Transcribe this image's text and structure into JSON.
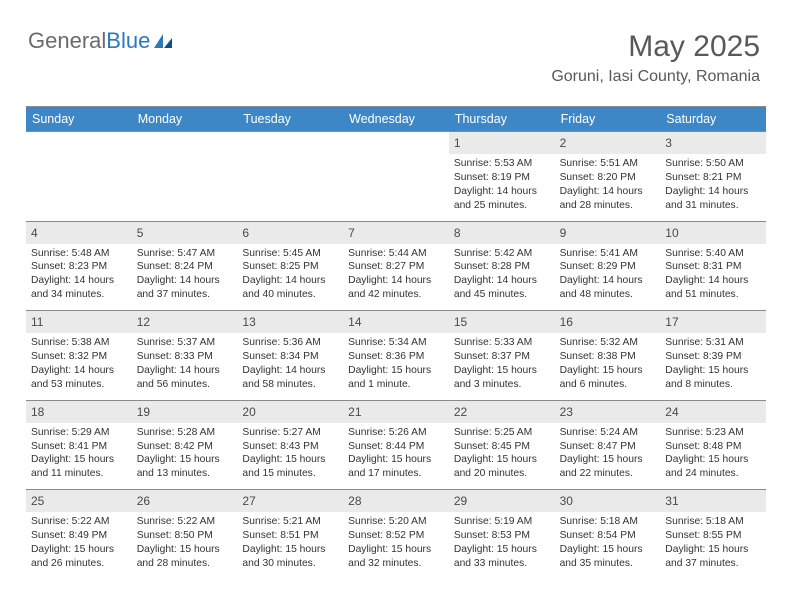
{
  "logo": {
    "text_gray": "General",
    "text_blue": "Blue"
  },
  "header": {
    "title": "May 2025",
    "subtitle": "Goruni, Iasi County, Romania"
  },
  "colors": {
    "header_bar": "#3d87c7",
    "daynum_bg": "#eaeaea",
    "rule": "#8a8a8a",
    "title_color": "#595959",
    "body_text": "#333333"
  },
  "day_names": [
    "Sunday",
    "Monday",
    "Tuesday",
    "Wednesday",
    "Thursday",
    "Friday",
    "Saturday"
  ],
  "weeks": [
    [
      {
        "n": "",
        "l": [
          "",
          "",
          "",
          ""
        ]
      },
      {
        "n": "",
        "l": [
          "",
          "",
          "",
          ""
        ]
      },
      {
        "n": "",
        "l": [
          "",
          "",
          "",
          ""
        ]
      },
      {
        "n": "",
        "l": [
          "",
          "",
          "",
          ""
        ]
      },
      {
        "n": "1",
        "l": [
          "Sunrise: 5:53 AM",
          "Sunset: 8:19 PM",
          "Daylight: 14 hours",
          "and 25 minutes."
        ]
      },
      {
        "n": "2",
        "l": [
          "Sunrise: 5:51 AM",
          "Sunset: 8:20 PM",
          "Daylight: 14 hours",
          "and 28 minutes."
        ]
      },
      {
        "n": "3",
        "l": [
          "Sunrise: 5:50 AM",
          "Sunset: 8:21 PM",
          "Daylight: 14 hours",
          "and 31 minutes."
        ]
      }
    ],
    [
      {
        "n": "4",
        "l": [
          "Sunrise: 5:48 AM",
          "Sunset: 8:23 PM",
          "Daylight: 14 hours",
          "and 34 minutes."
        ]
      },
      {
        "n": "5",
        "l": [
          "Sunrise: 5:47 AM",
          "Sunset: 8:24 PM",
          "Daylight: 14 hours",
          "and 37 minutes."
        ]
      },
      {
        "n": "6",
        "l": [
          "Sunrise: 5:45 AM",
          "Sunset: 8:25 PM",
          "Daylight: 14 hours",
          "and 40 minutes."
        ]
      },
      {
        "n": "7",
        "l": [
          "Sunrise: 5:44 AM",
          "Sunset: 8:27 PM",
          "Daylight: 14 hours",
          "and 42 minutes."
        ]
      },
      {
        "n": "8",
        "l": [
          "Sunrise: 5:42 AM",
          "Sunset: 8:28 PM",
          "Daylight: 14 hours",
          "and 45 minutes."
        ]
      },
      {
        "n": "9",
        "l": [
          "Sunrise: 5:41 AM",
          "Sunset: 8:29 PM",
          "Daylight: 14 hours",
          "and 48 minutes."
        ]
      },
      {
        "n": "10",
        "l": [
          "Sunrise: 5:40 AM",
          "Sunset: 8:31 PM",
          "Daylight: 14 hours",
          "and 51 minutes."
        ]
      }
    ],
    [
      {
        "n": "11",
        "l": [
          "Sunrise: 5:38 AM",
          "Sunset: 8:32 PM",
          "Daylight: 14 hours",
          "and 53 minutes."
        ]
      },
      {
        "n": "12",
        "l": [
          "Sunrise: 5:37 AM",
          "Sunset: 8:33 PM",
          "Daylight: 14 hours",
          "and 56 minutes."
        ]
      },
      {
        "n": "13",
        "l": [
          "Sunrise: 5:36 AM",
          "Sunset: 8:34 PM",
          "Daylight: 14 hours",
          "and 58 minutes."
        ]
      },
      {
        "n": "14",
        "l": [
          "Sunrise: 5:34 AM",
          "Sunset: 8:36 PM",
          "Daylight: 15 hours",
          "and 1 minute."
        ]
      },
      {
        "n": "15",
        "l": [
          "Sunrise: 5:33 AM",
          "Sunset: 8:37 PM",
          "Daylight: 15 hours",
          "and 3 minutes."
        ]
      },
      {
        "n": "16",
        "l": [
          "Sunrise: 5:32 AM",
          "Sunset: 8:38 PM",
          "Daylight: 15 hours",
          "and 6 minutes."
        ]
      },
      {
        "n": "17",
        "l": [
          "Sunrise: 5:31 AM",
          "Sunset: 8:39 PM",
          "Daylight: 15 hours",
          "and 8 minutes."
        ]
      }
    ],
    [
      {
        "n": "18",
        "l": [
          "Sunrise: 5:29 AM",
          "Sunset: 8:41 PM",
          "Daylight: 15 hours",
          "and 11 minutes."
        ]
      },
      {
        "n": "19",
        "l": [
          "Sunrise: 5:28 AM",
          "Sunset: 8:42 PM",
          "Daylight: 15 hours",
          "and 13 minutes."
        ]
      },
      {
        "n": "20",
        "l": [
          "Sunrise: 5:27 AM",
          "Sunset: 8:43 PM",
          "Daylight: 15 hours",
          "and 15 minutes."
        ]
      },
      {
        "n": "21",
        "l": [
          "Sunrise: 5:26 AM",
          "Sunset: 8:44 PM",
          "Daylight: 15 hours",
          "and 17 minutes."
        ]
      },
      {
        "n": "22",
        "l": [
          "Sunrise: 5:25 AM",
          "Sunset: 8:45 PM",
          "Daylight: 15 hours",
          "and 20 minutes."
        ]
      },
      {
        "n": "23",
        "l": [
          "Sunrise: 5:24 AM",
          "Sunset: 8:47 PM",
          "Daylight: 15 hours",
          "and 22 minutes."
        ]
      },
      {
        "n": "24",
        "l": [
          "Sunrise: 5:23 AM",
          "Sunset: 8:48 PM",
          "Daylight: 15 hours",
          "and 24 minutes."
        ]
      }
    ],
    [
      {
        "n": "25",
        "l": [
          "Sunrise: 5:22 AM",
          "Sunset: 8:49 PM",
          "Daylight: 15 hours",
          "and 26 minutes."
        ]
      },
      {
        "n": "26",
        "l": [
          "Sunrise: 5:22 AM",
          "Sunset: 8:50 PM",
          "Daylight: 15 hours",
          "and 28 minutes."
        ]
      },
      {
        "n": "27",
        "l": [
          "Sunrise: 5:21 AM",
          "Sunset: 8:51 PM",
          "Daylight: 15 hours",
          "and 30 minutes."
        ]
      },
      {
        "n": "28",
        "l": [
          "Sunrise: 5:20 AM",
          "Sunset: 8:52 PM",
          "Daylight: 15 hours",
          "and 32 minutes."
        ]
      },
      {
        "n": "29",
        "l": [
          "Sunrise: 5:19 AM",
          "Sunset: 8:53 PM",
          "Daylight: 15 hours",
          "and 33 minutes."
        ]
      },
      {
        "n": "30",
        "l": [
          "Sunrise: 5:18 AM",
          "Sunset: 8:54 PM",
          "Daylight: 15 hours",
          "and 35 minutes."
        ]
      },
      {
        "n": "31",
        "l": [
          "Sunrise: 5:18 AM",
          "Sunset: 8:55 PM",
          "Daylight: 15 hours",
          "and 37 minutes."
        ]
      }
    ]
  ]
}
